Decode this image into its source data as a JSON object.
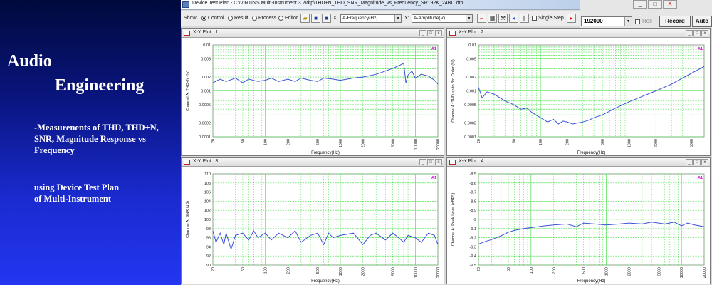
{
  "slide": {
    "title_line1": "Audio",
    "title_line2": "Engineering",
    "desc_lines": [
      "-Measurenents of THD, THD+N,",
      "SNR, Magnitude Response vs",
      "Frequency"
    ],
    "using_lines": [
      "using Device Test Plan",
      "of Multi-Instrument"
    ]
  },
  "app": {
    "window_title": "Device Test Plan - C:\\VIRTINS Multi-Instrument 3.2\\dtp\\THD+N_THD_SNR_Magnitude_vs_Frequency_SR192K_24BIT.dtp",
    "toolbar": {
      "show_label": "Show",
      "radios": [
        {
          "label": "Control",
          "selected": true
        },
        {
          "label": "Result",
          "selected": false
        },
        {
          "label": "Process",
          "selected": false
        },
        {
          "label": "Editor",
          "selected": false
        }
      ],
      "x_label": "X",
      "x_value": "A-Frequency(Hz)",
      "y_label": "Y:",
      "y_value": "A-Amplitude(V)",
      "single_step_label": "Single Step"
    },
    "right_panel": {
      "sample_rate": "192000",
      "roll_label": "Roll",
      "record_label": "Record",
      "auto_label": "Auto",
      "win_buttons": [
        "_",
        "□",
        "X"
      ]
    }
  },
  "chart_data": [
    {
      "type": "line",
      "window_title": "X-Y Plot : 1",
      "xlabel": "Frequency(Hz)",
      "ylabel": "Channel A: THD+N (%)",
      "xscale": "log",
      "yscale": "log",
      "xlim": [
        20,
        20000
      ],
      "ylim": [
        0.0001,
        0.01
      ],
      "x_ticks": [
        "20",
        "50",
        "100",
        "200",
        "500",
        "1000",
        "2000",
        "5000",
        "10000",
        "20000"
      ],
      "y_ticks": [
        "0.01",
        "0.005",
        "0.002",
        "0.001",
        "0.0005",
        "0.0002",
        "0.0001"
      ],
      "corner_label": "A1",
      "series": [
        {
          "color": "#3a50d8",
          "x": [
            20,
            25,
            30,
            40,
            50,
            60,
            80,
            100,
            120,
            150,
            200,
            250,
            300,
            400,
            500,
            600,
            800,
            1000,
            1500,
            2000,
            3000,
            4000,
            5000,
            6000,
            7000,
            7500,
            8000,
            9000,
            10000,
            12000,
            15000,
            18000,
            20000
          ],
          "y": [
            0.0015,
            0.0018,
            0.0016,
            0.0019,
            0.0015,
            0.0018,
            0.0016,
            0.0017,
            0.0019,
            0.0016,
            0.0018,
            0.0016,
            0.0019,
            0.0017,
            0.0016,
            0.0019,
            0.0018,
            0.0017,
            0.0019,
            0.002,
            0.0023,
            0.0027,
            0.0031,
            0.0035,
            0.004,
            0.0015,
            0.0022,
            0.0027,
            0.0019,
            0.0023,
            0.0021,
            0.0017,
            0.0014
          ]
        }
      ]
    },
    {
      "type": "line",
      "window_title": "X-Y Plot : 2",
      "xlabel": "Frequency(Hz)",
      "ylabel": "Channel A: THD up to 3rd Order (%)",
      "xscale": "log",
      "yscale": "log",
      "xlim": [
        20,
        7000
      ],
      "ylim": [
        0.0001,
        0.01
      ],
      "x_ticks": [
        "20",
        "50",
        "100",
        "200",
        "500",
        "1000",
        "2000",
        "5000"
      ],
      "y_ticks": [
        "0.01",
        "0.005",
        "0.002",
        "0.001",
        "0.0005",
        "0.0002",
        "0.0001"
      ],
      "corner_label": "A1",
      "series": [
        {
          "color": "#3a50d8",
          "x": [
            20,
            22,
            25,
            30,
            40,
            50,
            60,
            70,
            80,
            100,
            120,
            140,
            160,
            180,
            200,
            230,
            260,
            300,
            350,
            400,
            500,
            700,
            1000,
            1500,
            2000,
            3000,
            4000,
            5000,
            6000,
            7000
          ],
          "y": [
            0.0012,
            0.0007,
            0.00095,
            0.00085,
            0.0006,
            0.0005,
            0.0004,
            0.00042,
            0.00034,
            0.00026,
            0.00021,
            0.00024,
            0.00019,
            0.00022,
            0.00021,
            0.00019,
            0.0002,
            0.00021,
            0.00023,
            0.00026,
            0.0003,
            0.00042,
            0.00058,
            0.0008,
            0.001,
            0.0014,
            0.0019,
            0.0024,
            0.0029,
            0.0034
          ]
        }
      ]
    },
    {
      "type": "line",
      "window_title": "X-Y Plot : 3",
      "xlabel": "Frequency(Hz)",
      "ylabel": "Channel A: SNR (dB)",
      "xscale": "log",
      "yscale": "linear",
      "xlim": [
        20,
        20000
      ],
      "ylim": [
        90,
        110
      ],
      "x_ticks": [
        "20",
        "50",
        "100",
        "200",
        "500",
        "1000",
        "2000",
        "5000",
        "10000",
        "20000"
      ],
      "y_ticks": [
        "110",
        "108",
        "106",
        "104",
        "102",
        "100",
        "98",
        "96",
        "94",
        "92",
        "90"
      ],
      "corner_label": "A1",
      "series": [
        {
          "color": "#3a50d8",
          "x": [
            20,
            22,
            25,
            28,
            30,
            35,
            40,
            50,
            60,
            70,
            80,
            100,
            120,
            150,
            200,
            250,
            300,
            400,
            500,
            600,
            700,
            800,
            1000,
            1500,
            2000,
            2500,
            3000,
            4000,
            5000,
            6000,
            7000,
            8000,
            10000,
            12000,
            15000,
            18000,
            20000
          ],
          "y": [
            97.5,
            95,
            97,
            94.5,
            97,
            93.5,
            96.5,
            97,
            95.5,
            97.5,
            96,
            97,
            95.5,
            97,
            96,
            97.5,
            95,
            96.5,
            97,
            94.5,
            97,
            96,
            96.5,
            97,
            94.5,
            96.5,
            97,
            95.5,
            97,
            96,
            95,
            96.5,
            96,
            95,
            97,
            96.5,
            94.5
          ]
        }
      ]
    },
    {
      "type": "line",
      "window_title": "X-Y Plot : 4",
      "xlabel": "Frequency(Hz)",
      "ylabel": "Channel A: Peak Level (dBFS)",
      "xscale": "log",
      "yscale": "linear",
      "xlim": [
        20,
        20000
      ],
      "ylim": [
        -9.5,
        -8.5
      ],
      "x_ticks": [
        "20",
        "50",
        "100",
        "200",
        "500",
        "1000",
        "2000",
        "5000",
        "10000",
        "20000"
      ],
      "y_ticks": [
        "-8.5",
        "-8.6",
        "-8.7",
        "-8.8",
        "-8.9",
        "-9",
        "-9.1",
        "-9.2",
        "-9.3",
        "-9.4",
        "-9.5"
      ],
      "corner_label": "A1",
      "series": [
        {
          "color": "#3a50d8",
          "x": [
            20,
            25,
            30,
            40,
            50,
            60,
            80,
            100,
            150,
            200,
            300,
            400,
            500,
            700,
            1000,
            1500,
            2000,
            3000,
            4000,
            5000,
            6000,
            8000,
            10000,
            12000,
            15000,
            20000
          ],
          "y": [
            -9.27,
            -9.24,
            -9.22,
            -9.18,
            -9.14,
            -9.12,
            -9.1,
            -9.09,
            -9.07,
            -9.06,
            -9.05,
            -9.08,
            -9.04,
            -9.05,
            -9.06,
            -9.05,
            -9.04,
            -9.05,
            -9.03,
            -9.04,
            -9.05,
            -9.03,
            -9.07,
            -9.04,
            -9.06,
            -9.08
          ]
        }
      ]
    }
  ]
}
